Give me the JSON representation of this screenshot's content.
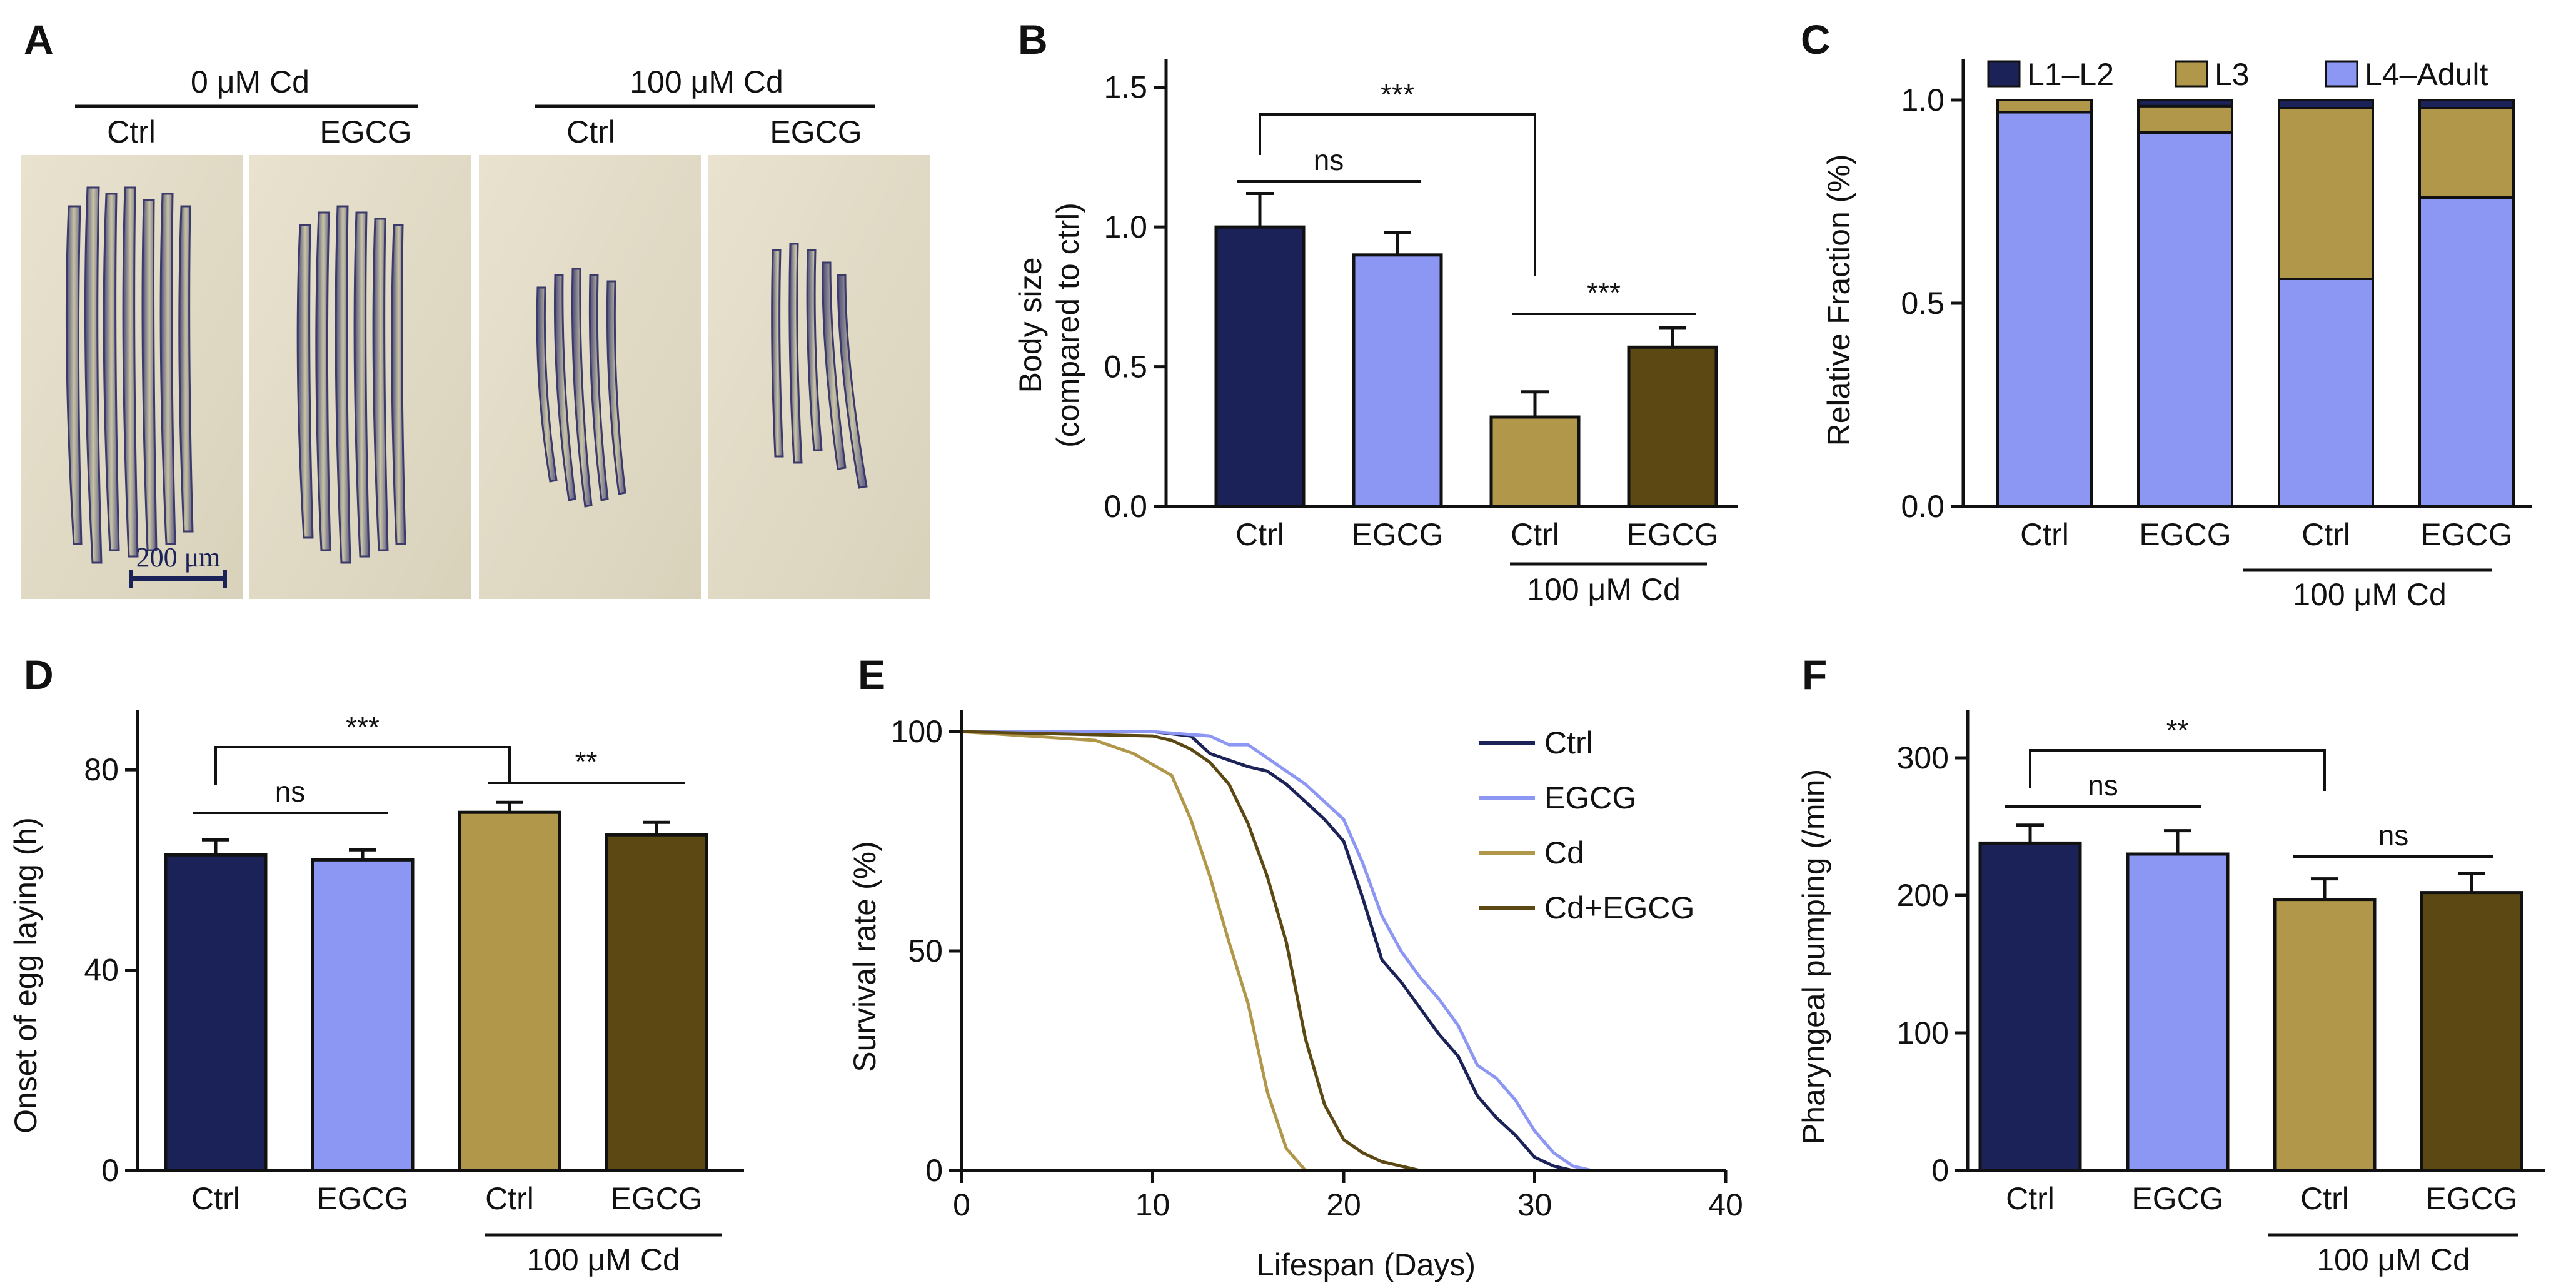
{
  "panels": {
    "A": {
      "letter": "A",
      "group1": "0 μM Cd",
      "group2": "100 μM Cd",
      "sub_labels": [
        "Ctrl",
        "EGCG",
        "Ctrl",
        "EGCG"
      ],
      "scale_bar": "200 μm"
    },
    "B": {
      "letter": "B",
      "group_label": "100 μM Cd",
      "sig_top": "***",
      "sig_left": "ns",
      "sig_right": "***"
    },
    "C": {
      "letter": "C",
      "group_label": "100 μM Cd"
    },
    "D": {
      "letter": "D",
      "group_label": "100 μM Cd",
      "sig_top": "***",
      "sig_left": "ns",
      "sig_right": "**"
    },
    "E": {
      "letter": "E"
    },
    "F": {
      "letter": "F",
      "group_label": "100 μM Cd",
      "sig_top": "**",
      "sig_left": "ns",
      "sig_right": "ns"
    }
  },
  "colors": {
    "ctrl": "#1b2257",
    "egcg": "#8c97f3",
    "cd": "#b0974a",
    "cd_egcg": "#5c4812",
    "photo_bg": "#e3ddc9"
  },
  "chart_data": [
    {
      "id": "B",
      "type": "bar",
      "title": "",
      "ylabel": "Body size",
      "ylabel2": "(compared to ctrl)",
      "xlabel": "",
      "categories": [
        "Ctrl",
        "EGCG",
        "Ctrl",
        "EGCG"
      ],
      "values": [
        1.0,
        0.9,
        0.32,
        0.57
      ],
      "errors": [
        0.12,
        0.08,
        0.09,
        0.07
      ],
      "ylim": [
        0,
        1.6
      ],
      "yticks": [
        "0.0",
        "0.5",
        "1.0",
        "1.5"
      ]
    },
    {
      "id": "C",
      "type": "bar",
      "stacked": true,
      "ylabel": "Relative Fraction (%)",
      "xlabel": "",
      "categories": [
        "Ctrl",
        "EGCG",
        "Ctrl",
        "EGCG"
      ],
      "series": [
        {
          "name": "L4–Adult",
          "values": [
            0.97,
            0.92,
            0.56,
            0.76
          ]
        },
        {
          "name": "L3",
          "values": [
            0.03,
            0.065,
            0.42,
            0.22
          ]
        },
        {
          "name": "L1–L2",
          "values": [
            0.0,
            0.015,
            0.02,
            0.02
          ]
        }
      ],
      "legend": [
        "L1–L2",
        "L3",
        "L4–Adult"
      ],
      "ylim": [
        0,
        1.1
      ],
      "yticks": [
        "0.0",
        "0.5",
        "1.0"
      ]
    },
    {
      "id": "D",
      "type": "bar",
      "ylabel": "Onset of egg laying (h)",
      "xlabel": "",
      "categories": [
        "Ctrl",
        "EGCG",
        "Ctrl",
        "EGCG"
      ],
      "values": [
        63,
        62,
        71.5,
        67
      ],
      "errors": [
        3,
        2,
        2,
        2.5
      ],
      "ylim": [
        0,
        92
      ],
      "yticks": [
        "0",
        "40",
        "80"
      ]
    },
    {
      "id": "E",
      "type": "line",
      "ylabel": "Survival rate (%)",
      "xlabel": "Lifespan (Days)",
      "xlim": [
        0,
        40
      ],
      "ylim": [
        0,
        105
      ],
      "xticks": [
        "0",
        "10",
        "20",
        "30",
        "40"
      ],
      "yticks": [
        "0",
        "50",
        "100"
      ],
      "series": [
        {
          "name": "Ctrl",
          "x": [
            0,
            10,
            12,
            13,
            15,
            16,
            17,
            18,
            19,
            20,
            21,
            22,
            23,
            24,
            25,
            26,
            27,
            28,
            29,
            30,
            31,
            32,
            33
          ],
          "y": [
            100,
            100,
            99,
            95,
            92,
            91,
            88,
            84,
            80,
            75,
            62,
            48,
            43,
            37,
            31,
            26,
            17,
            12,
            8,
            3,
            1,
            0,
            0
          ]
        },
        {
          "name": "EGCG",
          "x": [
            0,
            10,
            13,
            14,
            15,
            16,
            17,
            18,
            19,
            20,
            21,
            22,
            23,
            24,
            25,
            26,
            27,
            28,
            29,
            30,
            31,
            32,
            33
          ],
          "y": [
            100,
            100,
            99,
            97,
            97,
            94,
            91,
            88,
            84,
            80,
            70,
            58,
            50,
            44,
            39,
            33,
            24,
            21,
            16,
            9,
            4,
            1,
            0
          ]
        },
        {
          "name": "Cd",
          "x": [
            0,
            7,
            9,
            11,
            12,
            13,
            14,
            15,
            16,
            17,
            18,
            19
          ],
          "y": [
            100,
            98,
            95,
            90,
            80,
            67,
            52,
            38,
            18,
            5,
            0,
            0
          ]
        },
        {
          "name": "Cd+EGCG",
          "x": [
            0,
            10,
            11,
            12,
            13,
            14,
            15,
            16,
            17,
            18,
            19,
            20,
            21,
            22,
            23,
            24
          ],
          "y": [
            100,
            99,
            98,
            96,
            93,
            88,
            79,
            67,
            52,
            30,
            15,
            7,
            4,
            2,
            1,
            0
          ]
        }
      ]
    },
    {
      "id": "F",
      "type": "bar",
      "ylabel": "Pharyngeal pumping (/min)",
      "xlabel": "",
      "categories": [
        "Ctrl",
        "EGCG",
        "Ctrl",
        "EGCG"
      ],
      "values": [
        238,
        230,
        197,
        202
      ],
      "errors": [
        13,
        17,
        15,
        14
      ],
      "ylim": [
        0,
        335
      ],
      "yticks": [
        "0",
        "100",
        "200",
        "300"
      ]
    }
  ]
}
